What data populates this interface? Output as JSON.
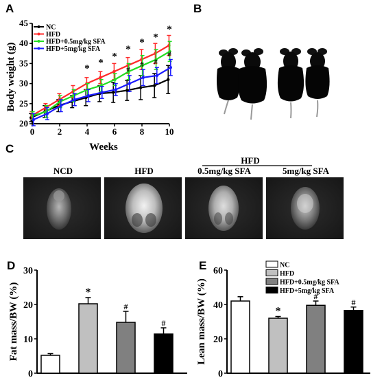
{
  "panel_letters": {
    "a": "A",
    "b": "B",
    "c": "C",
    "d": "D",
    "e": "E"
  },
  "colors": {
    "NC": "#000000",
    "HFD": "#ff2a2a",
    "HFD_low": "#22dd22",
    "HFD_high": "#1a1aff",
    "bar_nc": "#ffffff",
    "bar_hfd": "#c0c0c0",
    "bar_low": "#808080",
    "bar_high": "#000000"
  },
  "chart_data": [
    {
      "type": "line",
      "xlabel": "Weeks",
      "ylabel": "Body weight (g)",
      "xlim": [
        0,
        10
      ],
      "ylim": [
        20,
        45
      ],
      "xticks": [
        0,
        2,
        4,
        6,
        8,
        10
      ],
      "yticks": [
        20,
        25,
        30,
        35,
        40,
        45
      ],
      "x": [
        0,
        1,
        2,
        3,
        4,
        5,
        6,
        7,
        8,
        9,
        10
      ],
      "legend_position": "top-left",
      "series": [
        {
          "name": "NC",
          "values": [
            21.5,
            23.0,
            24.5,
            25.5,
            26.5,
            27.5,
            27.8,
            28.3,
            29.0,
            29.5,
            31.0
          ],
          "errors": [
            1.0,
            1.5,
            1.5,
            1.5,
            2.0,
            2.0,
            2.5,
            2.5,
            3.0,
            3.0,
            3.5
          ]
        },
        {
          "name": "HFD",
          "values": [
            22.0,
            24.0,
            26.0,
            28.0,
            30.0,
            31.5,
            33.0,
            34.5,
            36.0,
            37.5,
            39.5
          ],
          "errors": [
            1.0,
            1.0,
            1.5,
            1.5,
            1.5,
            1.5,
            2.0,
            2.0,
            2.5,
            2.5,
            2.5
          ]
        },
        {
          "name": "HFD+0.5mg/kg SFA",
          "values": [
            22.0,
            23.0,
            25.5,
            27.0,
            28.5,
            29.5,
            31.0,
            33.0,
            34.5,
            36.0,
            38.0
          ],
          "errors": [
            1.0,
            1.5,
            1.5,
            1.5,
            1.5,
            1.5,
            1.5,
            2.0,
            2.5,
            2.5,
            2.5
          ]
        },
        {
          "name": "HFD+5mg/kg SFA",
          "values": [
            21.0,
            22.5,
            24.5,
            26.0,
            27.0,
            27.8,
            28.5,
            30.0,
            31.5,
            32.0,
            34.0
          ],
          "errors": [
            1.5,
            1.5,
            1.5,
            1.5,
            1.5,
            1.5,
            1.5,
            2.0,
            2.0,
            2.0,
            2.0
          ]
        }
      ],
      "annotations": [
        {
          "text": "*",
          "x": 4,
          "y": 33.0
        },
        {
          "text": "*",
          "x": 5,
          "y": 34.5
        },
        {
          "text": "*",
          "x": 6,
          "y": 36.0
        },
        {
          "text": "*",
          "x": 7,
          "y": 37.8
        },
        {
          "text": "*",
          "x": 8,
          "y": 39.5
        },
        {
          "text": "*",
          "x": 9,
          "y": 40.8
        },
        {
          "text": "*",
          "x": 10,
          "y": 42.8
        },
        {
          "text": "#",
          "x": 7,
          "y": 33.0
        },
        {
          "text": "#",
          "x": 8,
          "y": 34.2
        },
        {
          "text": "#",
          "x": 9,
          "y": 34.8
        },
        {
          "text": "#",
          "x": 10,
          "y": 36.8
        }
      ]
    },
    {
      "type": "bar",
      "ylabel": "Fat mass/BW (%)",
      "ylim": [
        0,
        30
      ],
      "yticks": [
        0,
        10,
        20,
        30
      ],
      "categories": [
        "NC",
        "HFD",
        "HFD+0.5mg/kg SFA",
        "HFD+5mg/kg SFA"
      ],
      "values": [
        5.2,
        20.2,
        14.8,
        11.4
      ],
      "errors": [
        0.5,
        1.8,
        3.2,
        1.8
      ],
      "marks": [
        "",
        "*",
        "#",
        "#"
      ]
    },
    {
      "type": "bar",
      "ylabel": "Lean mass/BW (%)",
      "ylim": [
        0,
        60
      ],
      "yticks": [
        0,
        20,
        40,
        60
      ],
      "categories": [
        "NC",
        "HFD",
        "HFD+0.5mg/kg SFA",
        "HFD+5mg/kg SFA"
      ],
      "values": [
        42.0,
        32.0,
        39.5,
        36.5
      ],
      "errors": [
        2.5,
        1.0,
        2.5,
        2.0
      ],
      "marks": [
        "",
        "*",
        "#",
        "#"
      ],
      "legend_position": "top-right"
    }
  ],
  "panel_c": {
    "group_header": "HFD",
    "labels": [
      "NCD",
      "HFD",
      "0.5mg/kg SFA",
      "5mg/kg SFA"
    ]
  }
}
